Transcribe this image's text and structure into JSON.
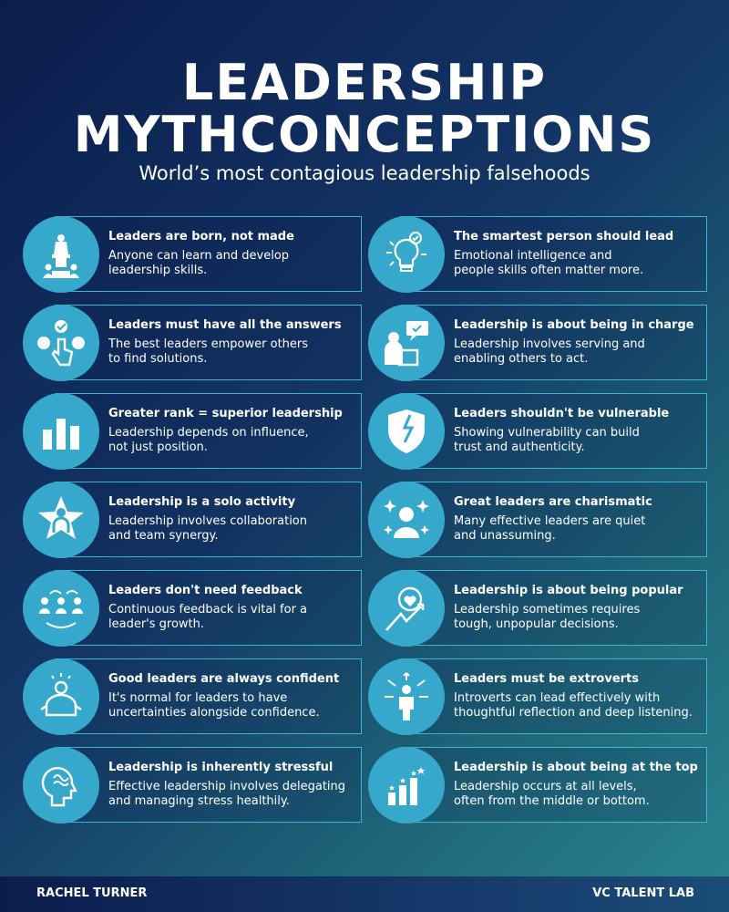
{
  "header": {
    "title_line1": "LEADERSHIP",
    "title_line2": "MYTHCONCEPTIONS",
    "subtitle": "World’s most contagious leadership falsehoods"
  },
  "myths": [
    {
      "icon": "speaker-podium-icon",
      "title": "Leaders are born, not made",
      "body": "Anyone can learn and develop\nleadership skills."
    },
    {
      "icon": "lightbulb-idea-icon",
      "title": "The smartest person should lead",
      "body": "Emotional intelligence and\npeople skills often matter more."
    },
    {
      "icon": "choice-hand-icon",
      "title": "Leaders must have all the answers",
      "body": "The best leaders empower others\nto find solutions."
    },
    {
      "icon": "presenter-chat-icon",
      "title": "Leadership is about being in charge",
      "body": "Leadership involves serving and\nenabling others to act."
    },
    {
      "icon": "bar-chart-icon",
      "title": "Greater rank = superior leadership",
      "body": "Leadership depends on influence,\nnot just position."
    },
    {
      "icon": "broken-shield-icon",
      "title": "Leaders shouldn't be vulnerable",
      "body": "Showing vulnerability can build\ntrust and authenticity."
    },
    {
      "icon": "star-person-icon",
      "title": "Leadership is a solo activity",
      "body": "Leadership involves collaboration\nand team synergy."
    },
    {
      "icon": "sparkle-person-icon",
      "title": "Great leaders are charismatic",
      "body": "Many effective leaders are quiet\nand unassuming."
    },
    {
      "icon": "feedback-cycle-icon",
      "title": "Leaders don't need feedback",
      "body": "Continuous feedback is vital for a\nleader's growth."
    },
    {
      "icon": "heart-growth-icon",
      "title": "Leadership is about being popular",
      "body": "Leadership sometimes requires\ntough, unpopular decisions."
    },
    {
      "icon": "confident-person-icon",
      "title": "Good leaders are always confident",
      "body": "It's normal for leaders to have\nuncertainties alongside confidence."
    },
    {
      "icon": "person-arrows-icon",
      "title": "Leaders must be extroverts",
      "body": "Introverts can lead effectively with\nthoughtful reflection and deep listening."
    },
    {
      "icon": "stressed-head-icon",
      "title": "Leadership is inherently stressful",
      "body": "Effective leadership involves delegating\nand managing stress healthily."
    },
    {
      "icon": "rising-bars-icon",
      "title": "Leadership is about being at the top",
      "body": "Leadership occurs at all levels,\noften from the middle or bottom."
    }
  ],
  "footer": {
    "author": "RACHEL TURNER",
    "brand": "VC TALENT LAB"
  }
}
